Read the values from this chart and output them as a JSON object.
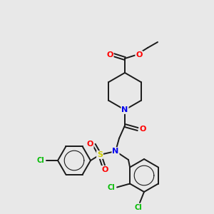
{
  "background_color": "#e8e8e8",
  "bond_color": "#1a1a1a",
  "bond_width": 1.4,
  "atom_colors": {
    "O": "#ff0000",
    "N": "#0000ee",
    "S": "#cccc00",
    "Cl": "#00bb00",
    "C": "#1a1a1a"
  }
}
